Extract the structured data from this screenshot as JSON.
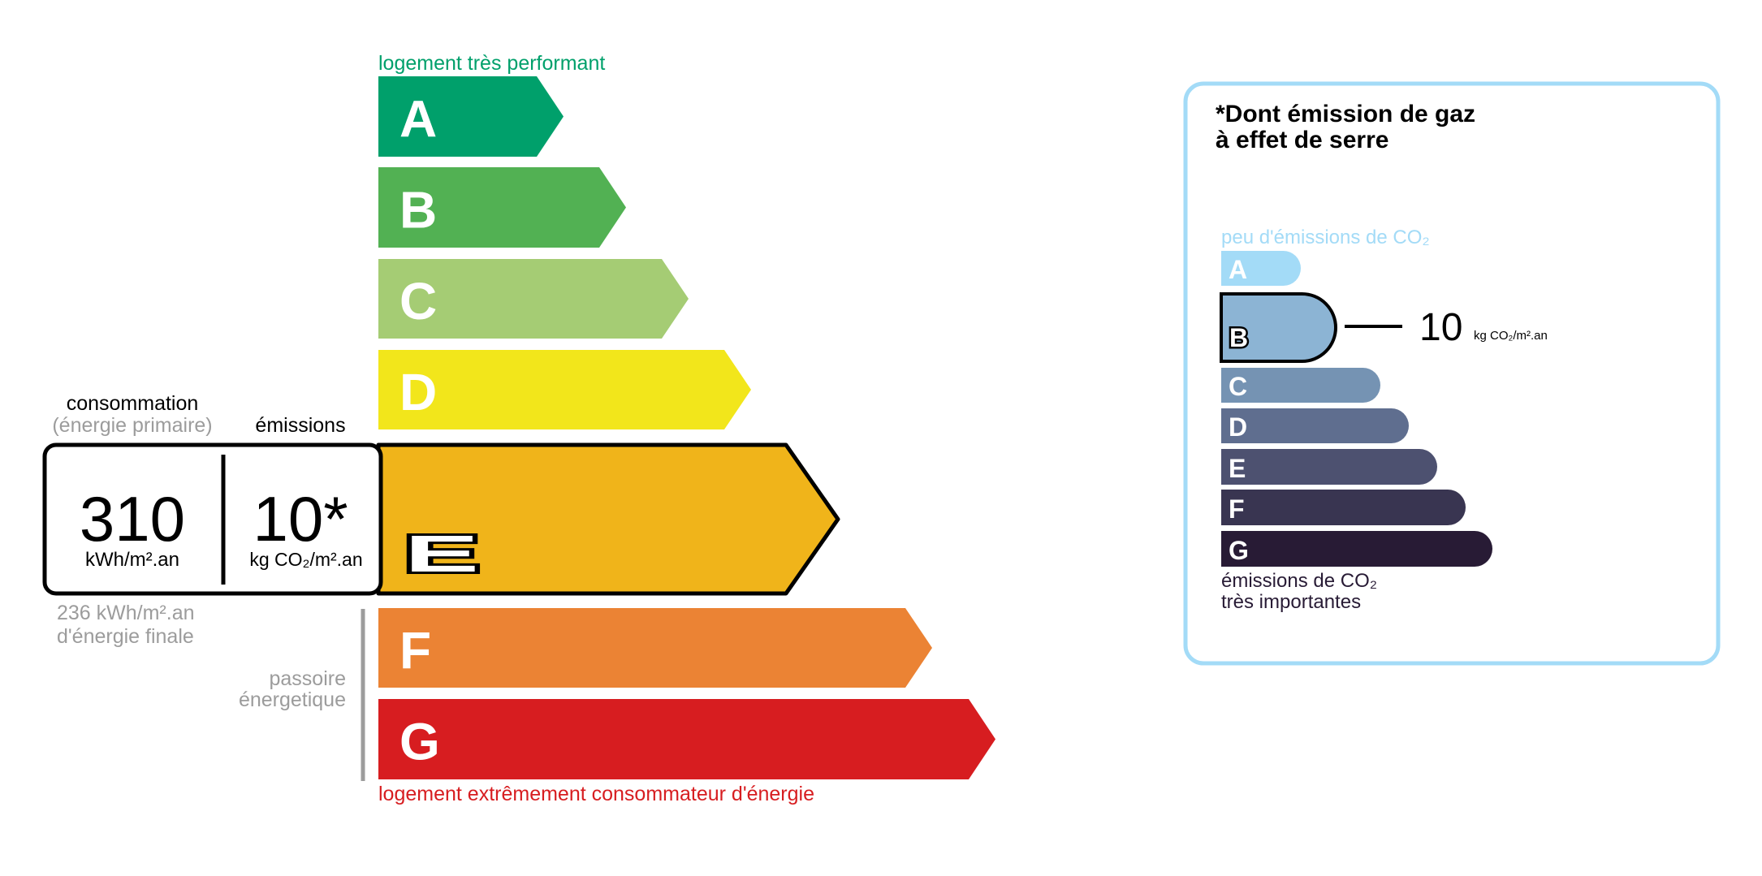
{
  "energy": {
    "top_label": "logement très performant",
    "bottom_label": "logement extrêmement consommateur d'énergie",
    "top_label_color": "#00a06b",
    "bottom_label_color": "#d71d20",
    "classes": [
      {
        "letter": "A",
        "color": "#00a06b"
      },
      {
        "letter": "B",
        "color": "#52b153"
      },
      {
        "letter": "C",
        "color": "#a5cc74"
      },
      {
        "letter": "D",
        "color": "#f2e61b"
      },
      {
        "letter": "E",
        "color": "#f0b41a"
      },
      {
        "letter": "F",
        "color": "#eb8334"
      },
      {
        "letter": "G",
        "color": "#d71d20"
      }
    ],
    "current_class": "E",
    "consumption_header": "consommation",
    "consumption_sub": "(énergie primaire)",
    "emissions_header": "émissions",
    "consumption_value": "310",
    "consumption_unit": "kWh/m².an",
    "emissions_value": "10*",
    "emissions_unit": "kg CO₂/m².an",
    "final_energy_value": "236 kWh/m².an",
    "final_energy_label": "d'énergie finale",
    "passoire_line1": "passoire",
    "passoire_line2": "énergetique"
  },
  "ghg": {
    "title_line1": "*Dont émission de gaz",
    "title_line2": "à effet de serre",
    "top_label": "peu d'émissions de CO₂",
    "bottom_label_line1": "émissions de CO₂",
    "bottom_label_line2": "très importantes",
    "border_color": "#a3dbf7",
    "classes": [
      {
        "letter": "A",
        "color": "#a3dbf7"
      },
      {
        "letter": "B",
        "color": "#8cb4d4"
      },
      {
        "letter": "C",
        "color": "#7593b3"
      },
      {
        "letter": "D",
        "color": "#5f6e8f"
      },
      {
        "letter": "E",
        "color": "#4d5170"
      },
      {
        "letter": "F",
        "color": "#393551"
      },
      {
        "letter": "G",
        "color": "#281b35"
      }
    ],
    "current_class": "B",
    "value": "10",
    "unit": "kg CO₂/m².an"
  }
}
